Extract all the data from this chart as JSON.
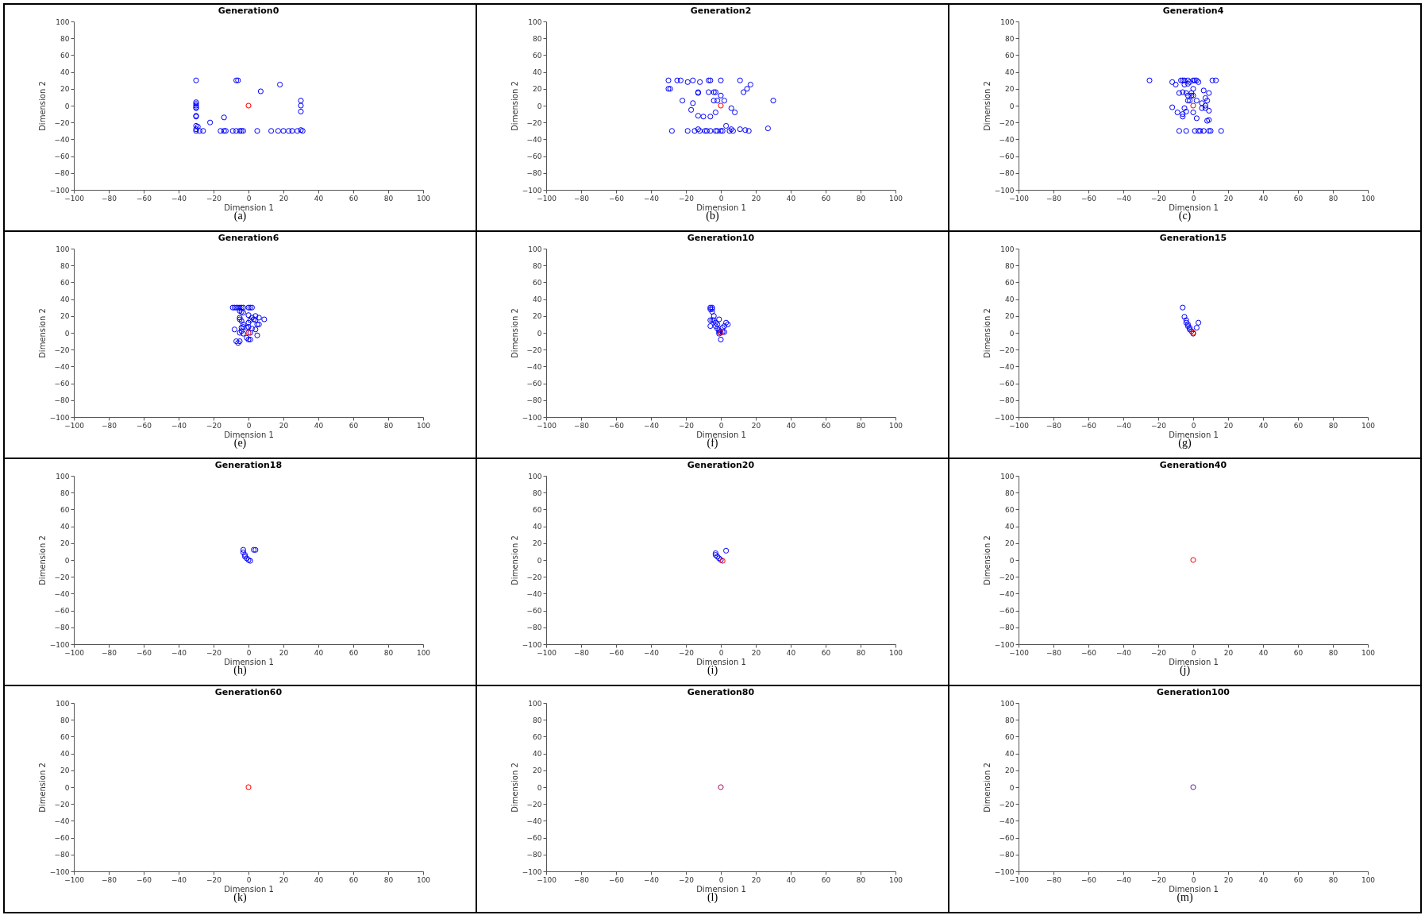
{
  "chart_data": [
    {
      "type": "scatter",
      "title": "Generation0",
      "xlabel": "Dimension 1",
      "ylabel": "Dimension 2",
      "annotations": [
        "(a)"
      ],
      "xlim": [
        -100,
        100
      ],
      "ylim": [
        -100,
        100
      ],
      "xticks": [
        -100,
        -80,
        -60,
        -40,
        -20,
        0,
        20,
        40,
        60,
        80,
        100
      ],
      "yticks": [
        -100,
        -80,
        -60,
        -40,
        -20,
        0,
        20,
        40,
        60,
        80,
        100
      ],
      "marker": "circle",
      "series": [
        {
          "color": "#0000ff",
          "x": [
            -30,
            -7,
            -6,
            7,
            18,
            -30,
            -30,
            -30,
            -30,
            -30,
            -30,
            -30,
            -14,
            -22,
            -30,
            -29,
            -30,
            -30,
            -28,
            -26,
            -16,
            -14,
            -13,
            -9,
            -7,
            -5,
            -4,
            -3,
            5,
            13,
            17,
            20,
            23,
            25,
            28,
            30,
            31,
            30,
            30,
            30
          ],
          "values": [
            30,
            30,
            30,
            17,
            25,
            4,
            2,
            0,
            -2,
            -3,
            -12,
            -13,
            -14,
            -20,
            -24,
            -25,
            -28,
            -30,
            -30,
            -30,
            -30,
            -30,
            -30,
            -30,
            -30,
            -30,
            -30,
            -30,
            -30,
            -30,
            -30,
            -30,
            -30,
            -30,
            -30,
            -29,
            -30,
            6,
            0,
            -7
          ]
        },
        {
          "color": "#ff0000",
          "x": [
            0
          ],
          "values": [
            0
          ]
        }
      ]
    },
    {
      "type": "scatter",
      "title": "Generation2",
      "xlabel": "Dimension 1",
      "ylabel": "Dimension 2",
      "annotations": [
        "(b)"
      ],
      "xlim": [
        -100,
        100
      ],
      "ylim": [
        -100,
        100
      ],
      "xticks": [
        -100,
        -80,
        -60,
        -40,
        -20,
        0,
        20,
        40,
        60,
        80,
        100
      ],
      "yticks": [
        -100,
        -80,
        -60,
        -40,
        -20,
        0,
        20,
        40,
        60,
        80,
        100
      ],
      "marker": "circle",
      "series": [
        {
          "color": "#0000ff",
          "x": [
            -30,
            -25,
            -23,
            -19,
            -16,
            -12,
            -7,
            -6,
            0,
            11,
            17,
            15,
            13,
            -30,
            -29,
            -13,
            -13,
            -7,
            -4,
            -3,
            0,
            -22,
            -16,
            -4,
            -2,
            2,
            30,
            -17,
            -3,
            6,
            8,
            -13,
            -10,
            -6,
            3,
            -28,
            -19,
            -15,
            -13,
            -12,
            -9,
            -8,
            -6,
            -3,
            -2,
            0,
            1,
            5,
            6,
            7,
            11,
            14,
            16,
            27
          ],
          "values": [
            30,
            30,
            30,
            28,
            30,
            28,
            30,
            30,
            30,
            30,
            25,
            20,
            16,
            20,
            20,
            15,
            16,
            16,
            16,
            16,
            12,
            6,
            3,
            6,
            6,
            6,
            6,
            -5,
            -8,
            -3,
            -8,
            -12,
            -13,
            -13,
            -24,
            -30,
            -30,
            -30,
            -28,
            -30,
            -30,
            -30,
            -30,
            -30,
            -30,
            -30,
            -30,
            -30,
            -28,
            -30,
            -28,
            -29,
            -30,
            -27
          ]
        },
        {
          "color": "#ff0000",
          "x": [
            0
          ],
          "values": [
            0
          ]
        }
      ]
    },
    {
      "type": "scatter",
      "title": "Generation4",
      "xlabel": "Dimension 1",
      "ylabel": "Dimension 2",
      "annotations": [
        "(c)"
      ],
      "xlim": [
        -100,
        100
      ],
      "ylim": [
        -100,
        100
      ],
      "xticks": [
        -100,
        -80,
        -60,
        -40,
        -20,
        0,
        20,
        40,
        60,
        80,
        100
      ],
      "yticks": [
        -100,
        -80,
        -60,
        -40,
        -20,
        0,
        20,
        40,
        60,
        80,
        100
      ],
      "marker": "circle",
      "series": [
        {
          "color": "#0000ff",
          "x": [
            -25,
            -12,
            -10,
            -7,
            -6,
            -5,
            -3,
            -2,
            0,
            1,
            2,
            3,
            11,
            13,
            -5,
            -3,
            0,
            6,
            9,
            -8,
            -6,
            -4,
            -1,
            -3,
            -1,
            0,
            -3,
            -2,
            2,
            7,
            8,
            5,
            7,
            -12,
            -5,
            5,
            7,
            9,
            -9,
            -4,
            0,
            -6,
            -6,
            2,
            8,
            9,
            -8,
            -4,
            1,
            3,
            4,
            6,
            9,
            10,
            16
          ],
          "values": [
            30,
            28,
            25,
            30,
            30,
            30,
            30,
            28,
            30,
            30,
            30,
            28,
            30,
            30,
            25,
            26,
            20,
            18,
            15,
            15,
            16,
            15,
            15,
            12,
            12,
            12,
            6,
            6,
            6,
            9,
            6,
            3,
            0,
            -2,
            -3,
            -3,
            -3,
            -6,
            -8,
            -7,
            -8,
            -10,
            -13,
            -15,
            -18,
            -17,
            -30,
            -30,
            -30,
            -30,
            -30,
            -30,
            -30,
            -30,
            -30
          ]
        },
        {
          "color": "#ff0000",
          "x": [
            0
          ],
          "values": [
            0
          ]
        }
      ]
    },
    {
      "type": "scatter",
      "title": "Generation6",
      "xlabel": "Dimension 1",
      "ylabel": "Dimension 2",
      "annotations": [
        "(e)"
      ],
      "xlim": [
        -100,
        100
      ],
      "ylim": [
        -100,
        100
      ],
      "xticks": [
        -100,
        -80,
        -60,
        -40,
        -20,
        0,
        20,
        40,
        60,
        80,
        100
      ],
      "yticks": [
        -100,
        -80,
        -60,
        -40,
        -20,
        0,
        20,
        40,
        60,
        80,
        100
      ],
      "marker": "circle",
      "series": [
        {
          "color": "#0000ff",
          "x": [
            -9,
            -8,
            -7,
            -6,
            -5,
            -4,
            -3,
            0,
            1,
            2,
            -5,
            -4,
            -3,
            0,
            4,
            6,
            9,
            2,
            3,
            1,
            4,
            -5,
            -5,
            -4,
            -3,
            0,
            5,
            6,
            -8,
            -4,
            -3,
            -1,
            0,
            2,
            4,
            -5,
            -3,
            -4,
            1,
            5,
            -1,
            0,
            1,
            -7,
            -6,
            -5
          ],
          "values": [
            30,
            30,
            30,
            30,
            30,
            30,
            30,
            30,
            30,
            30,
            26,
            25,
            24,
            21,
            20,
            18,
            16,
            18,
            16,
            15,
            15,
            18,
            16,
            14,
            10,
            12,
            10,
            10,
            4,
            6,
            7,
            6,
            7,
            5,
            4,
            0,
            -1,
            2,
            0,
            -3,
            -6,
            -8,
            -8,
            -10,
            -12,
            -10
          ]
        },
        {
          "color": "#ff0000",
          "x": [
            0
          ],
          "values": [
            0
          ]
        }
      ]
    },
    {
      "type": "scatter",
      "title": "Generation10",
      "xlabel": "Dimension 1",
      "ylabel": "Dimension 2",
      "annotations": [
        "(f)"
      ],
      "xlim": [
        -100,
        100
      ],
      "ylim": [
        -100,
        100
      ],
      "xticks": [
        -100,
        -80,
        -60,
        -40,
        -20,
        0,
        20,
        40,
        60,
        80,
        100
      ],
      "yticks": [
        -100,
        -80,
        -60,
        -40,
        -20,
        0,
        20,
        40,
        60,
        80,
        100
      ],
      "marker": "circle",
      "series": [
        {
          "color": "#0000ff",
          "x": [
            -6,
            -5,
            -6,
            -5,
            -5,
            -4,
            -6,
            -5,
            -4,
            -6,
            -3,
            -2,
            -3,
            -1,
            1,
            3,
            4,
            2,
            -2,
            -1,
            -1,
            1,
            2,
            -1,
            0
          ],
          "values": [
            30,
            30,
            28,
            28,
            25,
            20,
            15,
            15,
            15,
            8,
            12,
            10,
            8,
            16,
            6,
            12,
            10,
            8,
            5,
            3,
            1,
            1,
            1,
            -1,
            -8
          ]
        },
        {
          "color": "#ff0000",
          "x": [
            0
          ],
          "values": [
            0
          ]
        }
      ]
    },
    {
      "type": "scatter",
      "title": "Generation15",
      "xlabel": "Dimension 1",
      "ylabel": "Dimension 2",
      "annotations": [
        "(g)"
      ],
      "xlim": [
        -100,
        100
      ],
      "ylim": [
        -100,
        100
      ],
      "xticks": [
        -100,
        -80,
        -60,
        -40,
        -20,
        0,
        20,
        40,
        60,
        80,
        100
      ],
      "yticks": [
        -100,
        -80,
        -60,
        -40,
        -20,
        0,
        20,
        40,
        60,
        80,
        100
      ],
      "marker": "circle",
      "series": [
        {
          "color": "#0000ff",
          "x": [
            -6,
            -5,
            -4,
            -4,
            -3,
            -3,
            -2,
            -2,
            -1,
            0,
            3,
            2
          ],
          "values": [
            30,
            19,
            15,
            12,
            10,
            8,
            6,
            4,
            2,
            -1,
            12,
            6
          ]
        },
        {
          "color": "#ff0000",
          "x": [
            0
          ],
          "values": [
            0
          ]
        }
      ]
    },
    {
      "type": "scatter",
      "title": "Generation18",
      "xlabel": "Dimension 1",
      "ylabel": "Dimension 2",
      "annotations": [
        "(h)"
      ],
      "xlim": [
        -100,
        100
      ],
      "ylim": [
        -100,
        100
      ],
      "xticks": [
        -100,
        -80,
        -60,
        -40,
        -20,
        0,
        20,
        40,
        60,
        80,
        100
      ],
      "yticks": [
        -100,
        -80,
        -60,
        -40,
        -20,
        0,
        20,
        40,
        60,
        80,
        100
      ],
      "marker": "circle",
      "series": [
        {
          "color": "#0000ff",
          "x": [
            -3,
            -3,
            -2,
            -2,
            -1,
            0,
            1,
            3,
            4
          ],
          "values": [
            12,
            9,
            6,
            4,
            2,
            0,
            -1,
            12,
            12
          ]
        }
      ]
    },
    {
      "type": "scatter",
      "title": "Generation20",
      "xlabel": "Dimension 1",
      "ylabel": "Dimension 2",
      "annotations": [
        "(i)"
      ],
      "xlim": [
        -100,
        100
      ],
      "ylim": [
        -100,
        100
      ],
      "xticks": [
        -100,
        -80,
        -60,
        -40,
        -20,
        0,
        20,
        40,
        60,
        80,
        100
      ],
      "yticks": [
        -100,
        -80,
        -60,
        -40,
        -20,
        0,
        20,
        40,
        60,
        80,
        100
      ],
      "marker": "circle",
      "series": [
        {
          "color": "#0000ff",
          "x": [
            -3,
            -3,
            -2,
            -1,
            0,
            3
          ],
          "values": [
            8,
            6,
            4,
            2,
            0,
            11
          ]
        },
        {
          "color": "#ff0000",
          "x": [
            1
          ],
          "values": [
            -1
          ]
        }
      ]
    },
    {
      "type": "scatter",
      "title": "Generation40",
      "xlabel": "Dimension 1",
      "ylabel": "Dimension 2",
      "annotations": [
        "(j)"
      ],
      "xlim": [
        -100,
        100
      ],
      "ylim": [
        -100,
        100
      ],
      "xticks": [
        -100,
        -80,
        -60,
        -40,
        -20,
        0,
        20,
        40,
        60,
        80,
        100
      ],
      "yticks": [
        -100,
        -80,
        -60,
        -40,
        -20,
        0,
        20,
        40,
        60,
        80,
        100
      ],
      "marker": "circle",
      "series": [
        {
          "color": "#ff0000",
          "x": [
            0
          ],
          "values": [
            0
          ]
        }
      ]
    },
    {
      "type": "scatter",
      "title": "Generation60",
      "xlabel": "Dimension 1",
      "ylabel": "Dimension 2",
      "annotations": [
        "(k)"
      ],
      "xlim": [
        -100,
        100
      ],
      "ylim": [
        -100,
        100
      ],
      "xticks": [
        -100,
        -80,
        -60,
        -40,
        -20,
        0,
        20,
        40,
        60,
        80,
        100
      ],
      "yticks": [
        -100,
        -80,
        -60,
        -40,
        -20,
        0,
        20,
        40,
        60,
        80,
        100
      ],
      "marker": "circle",
      "series": [
        {
          "color": "#ff0000",
          "x": [
            0
          ],
          "values": [
            0
          ]
        }
      ]
    },
    {
      "type": "scatter",
      "title": "Generation80",
      "xlabel": "Dimension 1",
      "ylabel": "Dimension 2",
      "annotations": [
        "(l)"
      ],
      "xlim": [
        -100,
        100
      ],
      "ylim": [
        -100,
        100
      ],
      "xticks": [
        -100,
        -80,
        -60,
        -40,
        -20,
        0,
        20,
        40,
        60,
        80,
        100
      ],
      "yticks": [
        -100,
        -80,
        -60,
        -40,
        -20,
        0,
        20,
        40,
        60,
        80,
        100
      ],
      "marker": "circle",
      "series": [
        {
          "color": "#a0105a",
          "x": [
            0
          ],
          "values": [
            0
          ]
        }
      ]
    },
    {
      "type": "scatter",
      "title": "Generation100",
      "xlabel": "Dimension 1",
      "ylabel": "Dimension 2",
      "annotations": [
        "(m)"
      ],
      "xlim": [
        -100,
        100
      ],
      "ylim": [
        -100,
        100
      ],
      "xticks": [
        -100,
        -80,
        -60,
        -40,
        -20,
        0,
        20,
        40,
        60,
        80,
        100
      ],
      "yticks": [
        -100,
        -80,
        -60,
        -40,
        -20,
        0,
        20,
        40,
        60,
        80,
        100
      ],
      "marker": "circle",
      "series": [
        {
          "color": "#6020a0",
          "x": [
            0
          ],
          "values": [
            0
          ]
        }
      ]
    }
  ]
}
